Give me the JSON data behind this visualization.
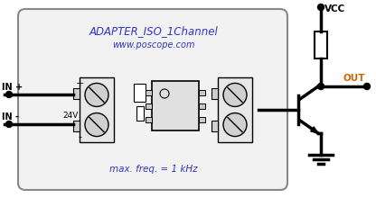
{
  "title": "ADAPTER_ISO_1Channel",
  "subtitle": "www.poscope.com",
  "footer": "max. freq. = 1 kHz",
  "label_in_plus": "IN +",
  "label_in_minus": "IN -",
  "label_vcc": "VCC",
  "label_out": "OUT",
  "label_24v": "24V",
  "label_plus": "+",
  "label_minus": "-",
  "bg_color": "#ffffff",
  "board_edge": "#888888",
  "board_fill": "#f2f2f2",
  "line_color": "#000000",
  "title_color": "#3333cc",
  "out_color": "#cc6600"
}
